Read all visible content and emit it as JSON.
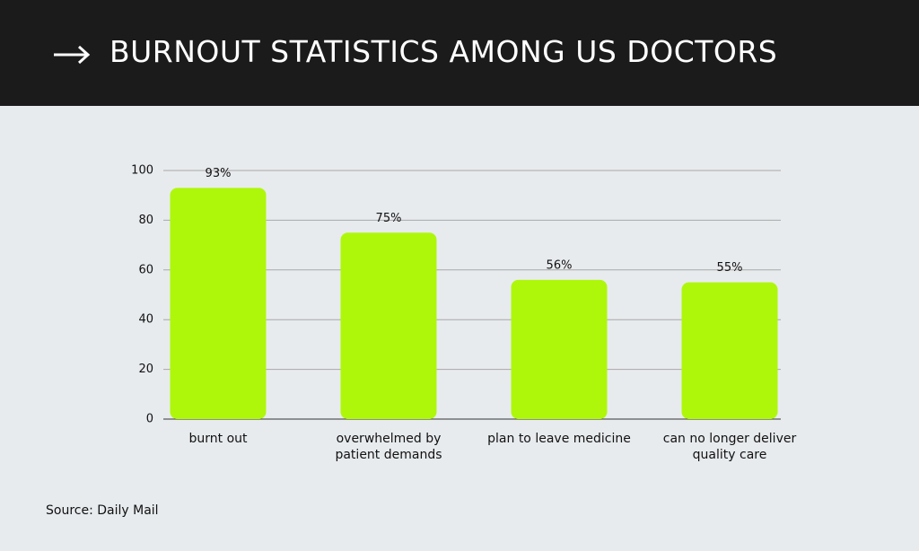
{
  "chart_data": {
    "type": "bar",
    "title": "BURNOUT STATISTICS AMONG US DOCTORS",
    "categories": [
      "burnt out",
      "overwhelmed by patient demands",
      "plan to leave medicine",
      "can no longer deliver quality care"
    ],
    "values": [
      93,
      75,
      56,
      55
    ],
    "value_labels": [
      "93%",
      "75%",
      "56%",
      "55%"
    ],
    "color": "#aef70a",
    "ylim": [
      0,
      100
    ],
    "yticks": [
      0,
      20,
      40,
      60,
      80,
      100
    ],
    "grid": true,
    "source": "Source: Daily Mail"
  }
}
